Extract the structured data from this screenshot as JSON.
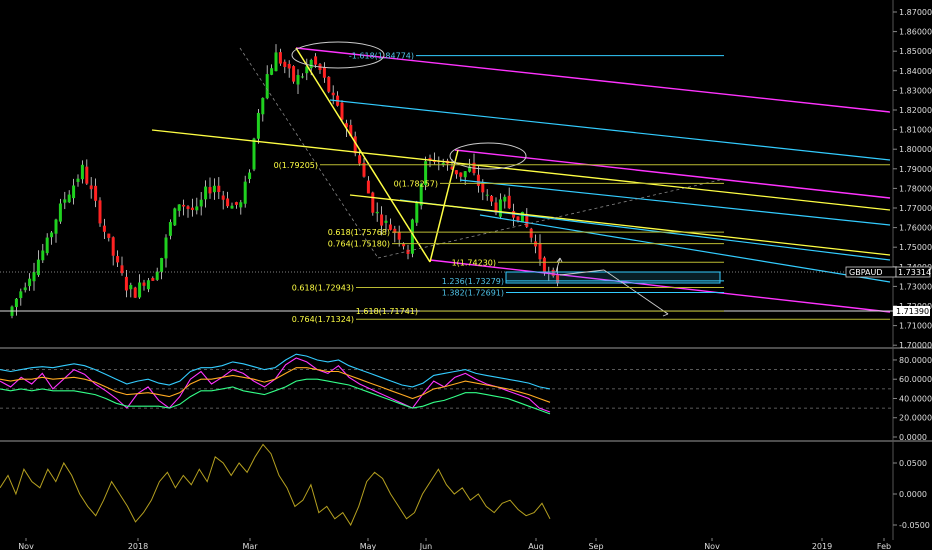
{
  "symbol": "GBPAUD",
  "last_price": "1.73314",
  "ref_price": "1.71390",
  "chart_data": [
    {
      "type": "candlestick",
      "panel": "price",
      "x_ticks": [
        "Nov",
        "2018",
        "Mar",
        "May",
        "Jun",
        "Aug",
        "Sep",
        "Nov",
        "2019",
        "Feb"
      ],
      "y_ticks": [
        "1.87000",
        "1.86000",
        "1.85000",
        "1.84000",
        "1.83000",
        "1.82000",
        "1.81000",
        "1.80000",
        "1.79000",
        "1.78000",
        "1.77000",
        "1.76000",
        "1.75000",
        "1.74000",
        "1.73000",
        "1.72000",
        "1.71000",
        "1.70000"
      ],
      "ylim": [
        1.69,
        1.875
      ],
      "price_path": [
        [
          0,
          1.715
        ],
        [
          3,
          1.728
        ],
        [
          6,
          1.74
        ],
        [
          9,
          1.752
        ],
        [
          11,
          1.765
        ],
        [
          13,
          1.775
        ],
        [
          15,
          1.782
        ],
        [
          17,
          1.79
        ],
        [
          19,
          1.778
        ],
        [
          21,
          1.765
        ],
        [
          23,
          1.752
        ],
        [
          25,
          1.74
        ],
        [
          27,
          1.73
        ],
        [
          29,
          1.727
        ],
        [
          31,
          1.733
        ],
        [
          33,
          1.735
        ],
        [
          35,
          1.745
        ],
        [
          37,
          1.762
        ],
        [
          39,
          1.773
        ],
        [
          41,
          1.77
        ],
        [
          43,
          1.768
        ],
        [
          45,
          1.778
        ],
        [
          47,
          1.782
        ],
        [
          49,
          1.775
        ],
        [
          51,
          1.771
        ],
        [
          53,
          1.772
        ],
        [
          55,
          1.79
        ],
        [
          57,
          1.82
        ],
        [
          59,
          1.838
        ],
        [
          61,
          1.848
        ],
        [
          63,
          1.842
        ],
        [
          65,
          1.835
        ],
        [
          67,
          1.838
        ],
        [
          69,
          1.845
        ],
        [
          71,
          1.84
        ],
        [
          73,
          1.83
        ],
        [
          75,
          1.82
        ],
        [
          77,
          1.812
        ],
        [
          79,
          1.8
        ],
        [
          81,
          1.785
        ],
        [
          83,
          1.77
        ],
        [
          85,
          1.764
        ],
        [
          87,
          1.76
        ],
        [
          89,
          1.756
        ],
        [
          91,
          1.748
        ],
        [
          93,
          1.775
        ],
        [
          95,
          1.792
        ],
        [
          97,
          1.795
        ],
        [
          99,
          1.793
        ],
        [
          101,
          1.79
        ],
        [
          103,
          1.787
        ],
        [
          105,
          1.79
        ],
        [
          107,
          1.782
        ],
        [
          109,
          1.775
        ],
        [
          111,
          1.77
        ],
        [
          113,
          1.773
        ],
        [
          115,
          1.768
        ],
        [
          117,
          1.765
        ],
        [
          119,
          1.755
        ],
        [
          121,
          1.745
        ],
        [
          123,
          1.735
        ],
        [
          124,
          1.733
        ]
      ],
      "annotations": [
        {
          "text": "-1.618(1.84774)",
          "price": 1.84774,
          "color": "#4fc3e8"
        },
        {
          "text": "0(1.79205)",
          "price": 1.79205,
          "color": "#ffff44"
        },
        {
          "text": "0(1.78257)",
          "price": 1.78257,
          "color": "#ffff44"
        },
        {
          "text": "0.618(1.75768)",
          "price": 1.75768,
          "color": "#ffff44"
        },
        {
          "text": "0.764(1.75180)",
          "price": 1.7518,
          "color": "#ffff44"
        },
        {
          "text": "1(1.74230)",
          "price": 1.7423,
          "color": "#ffff44"
        },
        {
          "text": "1.236(1.73279)",
          "price": 1.73279,
          "color": "#4fc3e8"
        },
        {
          "text": "1.382(1.72691)",
          "price": 1.72691,
          "color": "#4fc3e8"
        },
        {
          "text": "0.618(1.72943)",
          "price": 1.72943,
          "color": "#ffff44"
        },
        {
          "text": "1.618(1.71741)",
          "price": 1.71741,
          "color": "#ffff44"
        },
        {
          "text": "0.764(1.71324)",
          "price": 1.71324,
          "color": "#ffff44"
        }
      ]
    },
    {
      "type": "line",
      "panel": "oscillator",
      "y_ticks": [
        "80.0000",
        "60.0000",
        "40.0000",
        "20.0000",
        "0.0000"
      ],
      "ylim": [
        0,
        90
      ],
      "series": [
        {
          "color": "#ff33ff",
          "values": [
            58,
            52,
            62,
            55,
            66,
            50,
            60,
            70,
            65,
            55,
            48,
            40,
            30,
            45,
            52,
            38,
            30,
            42,
            60,
            68,
            55,
            62,
            70,
            66,
            58,
            52,
            60,
            75,
            82,
            78,
            70,
            66,
            74,
            62,
            55,
            50,
            45,
            40,
            35,
            30,
            45,
            58,
            52,
            62,
            66,
            60,
            55,
            52,
            48,
            44,
            40,
            30,
            26
          ]
        },
        {
          "color": "#ffaa22",
          "values": [
            60,
            58,
            60,
            60,
            62,
            60,
            61,
            62,
            60,
            57,
            52,
            47,
            44,
            45,
            46,
            44,
            42,
            46,
            55,
            60,
            60,
            62,
            64,
            62,
            60,
            57,
            60,
            66,
            72,
            72,
            70,
            68,
            68,
            64,
            60,
            56,
            52,
            48,
            44,
            40,
            44,
            50,
            52,
            55,
            58,
            56,
            54,
            52,
            50,
            47,
            44,
            40,
            36
          ]
        },
        {
          "color": "#33ccff",
          "values": [
            70,
            68,
            70,
            72,
            73,
            72,
            74,
            76,
            74,
            70,
            65,
            60,
            55,
            58,
            60,
            56,
            54,
            58,
            68,
            72,
            72,
            74,
            78,
            76,
            73,
            70,
            72,
            80,
            86,
            84,
            80,
            78,
            80,
            74,
            70,
            66,
            62,
            58,
            54,
            52,
            56,
            64,
            66,
            68,
            70,
            66,
            64,
            62,
            60,
            58,
            56,
            52,
            50
          ]
        },
        {
          "color": "#33ff88",
          "values": [
            50,
            48,
            50,
            48,
            50,
            48,
            48,
            48,
            46,
            44,
            40,
            35,
            32,
            32,
            32,
            32,
            30,
            34,
            42,
            48,
            48,
            50,
            52,
            48,
            46,
            44,
            48,
            52,
            58,
            60,
            60,
            58,
            56,
            54,
            50,
            46,
            42,
            38,
            34,
            30,
            32,
            36,
            38,
            42,
            46,
            46,
            44,
            42,
            40,
            36,
            32,
            28,
            24
          ]
        }
      ]
    },
    {
      "type": "line",
      "panel": "momentum",
      "y_ticks": [
        "0.0500",
        "0.0000",
        "-0.0500"
      ],
      "ylim": [
        -0.065,
        0.09
      ],
      "series": [
        {
          "color": "#b5a020",
          "values": [
            0.01,
            0.03,
            0.0,
            0.04,
            0.02,
            0.01,
            0.04,
            0.02,
            0.05,
            0.03,
            0.0,
            -0.02,
            -0.035,
            -0.01,
            0.02,
            0.0,
            -0.02,
            -0.045,
            -0.03,
            -0.01,
            0.02,
            0.035,
            0.01,
            0.03,
            0.015,
            0.04,
            0.02,
            0.06,
            0.05,
            0.03,
            0.05,
            0.035,
            0.06,
            0.08,
            0.065,
            0.03,
            0.01,
            -0.02,
            -0.01,
            0.015,
            -0.03,
            -0.02,
            -0.04,
            -0.03,
            -0.05,
            -0.02,
            0.02,
            0.035,
            0.025,
            0.0,
            -0.02,
            -0.04,
            -0.03,
            0.0,
            0.02,
            0.04,
            0.015,
            0.0,
            0.01,
            -0.01,
            0.0,
            -0.02,
            -0.03,
            -0.015,
            -0.01,
            -0.025,
            -0.035,
            -0.03,
            -0.015,
            -0.04
          ]
        }
      ]
    }
  ]
}
